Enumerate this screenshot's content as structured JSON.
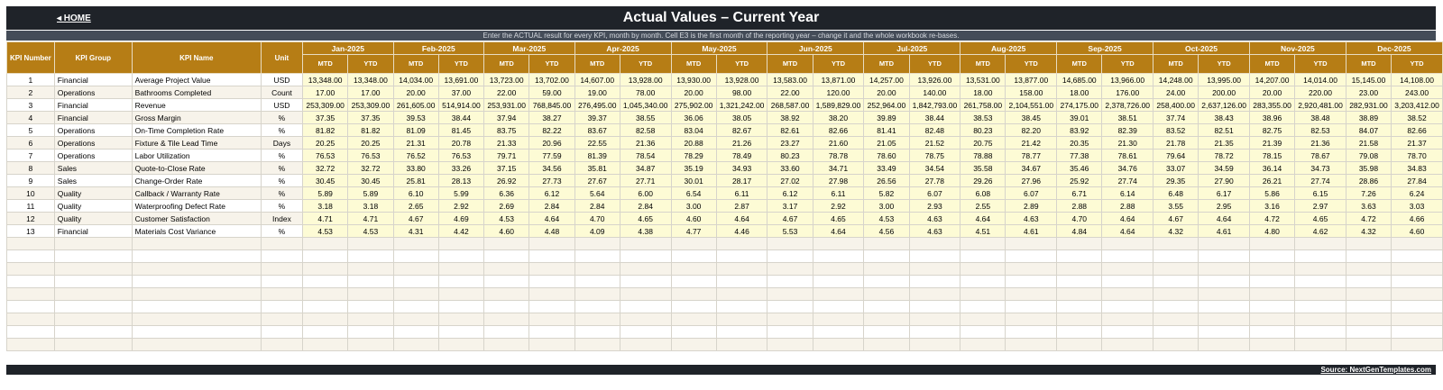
{
  "header": {
    "home_label": "◂ HOME",
    "title": "Actual Values  –  Current Year",
    "instructions": "Enter the ACTUAL result for every KPI, month by month. Cell E3 is the first month of the reporting year – change it and the whole workbook re-bases."
  },
  "table": {
    "columns": {
      "num": "KPI Number",
      "group": "KPI Group",
      "name": "KPI Name",
      "unit": "Unit",
      "mtd": "MTD",
      "ytd": "YTD"
    },
    "months": [
      "Jan-2025",
      "Feb-2025",
      "Mar-2025",
      "Apr-2025",
      "May-2025",
      "Jun-2025",
      "Jul-2025",
      "Aug-2025",
      "Sep-2025",
      "Oct-2025",
      "Nov-2025",
      "Dec-2025"
    ],
    "rows": [
      {
        "num": "1",
        "group": "Financial",
        "name": "Average Project Value",
        "unit": "USD",
        "values": [
          "13,348.00",
          "13,348.00",
          "14,034.00",
          "13,691.00",
          "13,723.00",
          "13,702.00",
          "14,607.00",
          "13,928.00",
          "13,930.00",
          "13,928.00",
          "13,583.00",
          "13,871.00",
          "14,257.00",
          "13,926.00",
          "13,531.00",
          "13,877.00",
          "14,685.00",
          "13,966.00",
          "14,248.00",
          "13,995.00",
          "14,207.00",
          "14,014.00",
          "15,145.00",
          "14,108.00"
        ]
      },
      {
        "num": "2",
        "group": "Operations",
        "name": "Bathrooms Completed",
        "unit": "Count",
        "values": [
          "17.00",
          "17.00",
          "20.00",
          "37.00",
          "22.00",
          "59.00",
          "19.00",
          "78.00",
          "20.00",
          "98.00",
          "22.00",
          "120.00",
          "20.00",
          "140.00",
          "18.00",
          "158.00",
          "18.00",
          "176.00",
          "24.00",
          "200.00",
          "20.00",
          "220.00",
          "23.00",
          "243.00"
        ]
      },
      {
        "num": "3",
        "group": "Financial",
        "name": "Revenue",
        "unit": "USD",
        "values": [
          "253,309.00",
          "253,309.00",
          "261,605.00",
          "514,914.00",
          "253,931.00",
          "768,845.00",
          "276,495.00",
          "1,045,340.00",
          "275,902.00",
          "1,321,242.00",
          "268,587.00",
          "1,589,829.00",
          "252,964.00",
          "1,842,793.00",
          "261,758.00",
          "2,104,551.00",
          "274,175.00",
          "2,378,726.00",
          "258,400.00",
          "2,637,126.00",
          "283,355.00",
          "2,920,481.00",
          "282,931.00",
          "3,203,412.00"
        ]
      },
      {
        "num": "4",
        "group": "Financial",
        "name": "Gross Margin",
        "unit": "%",
        "values": [
          "37.35",
          "37.35",
          "39.53",
          "38.44",
          "37.94",
          "38.27",
          "39.37",
          "38.55",
          "36.06",
          "38.05",
          "38.92",
          "38.20",
          "39.89",
          "38.44",
          "38.53",
          "38.45",
          "39.01",
          "38.51",
          "37.74",
          "38.43",
          "38.96",
          "38.48",
          "38.89",
          "38.52"
        ]
      },
      {
        "num": "5",
        "group": "Operations",
        "name": "On-Time Completion Rate",
        "unit": "%",
        "values": [
          "81.82",
          "81.82",
          "81.09",
          "81.45",
          "83.75",
          "82.22",
          "83.67",
          "82.58",
          "83.04",
          "82.67",
          "82.61",
          "82.66",
          "81.41",
          "82.48",
          "80.23",
          "82.20",
          "83.92",
          "82.39",
          "83.52",
          "82.51",
          "82.75",
          "82.53",
          "84.07",
          "82.66"
        ]
      },
      {
        "num": "6",
        "group": "Operations",
        "name": "Fixture & Tile Lead Time",
        "unit": "Days",
        "values": [
          "20.25",
          "20.25",
          "21.31",
          "20.78",
          "21.33",
          "20.96",
          "22.55",
          "21.36",
          "20.88",
          "21.26",
          "23.27",
          "21.60",
          "21.05",
          "21.52",
          "20.75",
          "21.42",
          "20.35",
          "21.30",
          "21.78",
          "21.35",
          "21.39",
          "21.36",
          "21.58",
          "21.37"
        ]
      },
      {
        "num": "7",
        "group": "Operations",
        "name": "Labor Utilization",
        "unit": "%",
        "values": [
          "76.53",
          "76.53",
          "76.52",
          "76.53",
          "79.71",
          "77.59",
          "81.39",
          "78.54",
          "78.29",
          "78.49",
          "80.23",
          "78.78",
          "78.60",
          "78.75",
          "78.88",
          "78.77",
          "77.38",
          "78.61",
          "79.64",
          "78.72",
          "78.15",
          "78.67",
          "79.08",
          "78.70"
        ]
      },
      {
        "num": "8",
        "group": "Sales",
        "name": "Quote-to-Close Rate",
        "unit": "%",
        "values": [
          "32.72",
          "32.72",
          "33.80",
          "33.26",
          "37.15",
          "34.56",
          "35.81",
          "34.87",
          "35.19",
          "34.93",
          "33.60",
          "34.71",
          "33.49",
          "34.54",
          "35.58",
          "34.67",
          "35.46",
          "34.76",
          "33.07",
          "34.59",
          "36.14",
          "34.73",
          "35.98",
          "34.83"
        ]
      },
      {
        "num": "9",
        "group": "Sales",
        "name": "Change-Order Rate",
        "unit": "%",
        "values": [
          "30.45",
          "30.45",
          "25.81",
          "28.13",
          "26.92",
          "27.73",
          "27.67",
          "27.71",
          "30.01",
          "28.17",
          "27.02",
          "27.98",
          "26.56",
          "27.78",
          "29.26",
          "27.96",
          "25.92",
          "27.74",
          "29.35",
          "27.90",
          "26.21",
          "27.74",
          "28.86",
          "27.84"
        ]
      },
      {
        "num": "10",
        "group": "Quality",
        "name": "Callback / Warranty Rate",
        "unit": "%",
        "values": [
          "5.89",
          "5.89",
          "6.10",
          "5.99",
          "6.36",
          "6.12",
          "5.64",
          "6.00",
          "6.54",
          "6.11",
          "6.12",
          "6.11",
          "5.82",
          "6.07",
          "6.08",
          "6.07",
          "6.71",
          "6.14",
          "6.48",
          "6.17",
          "5.86",
          "6.15",
          "7.26",
          "6.24"
        ]
      },
      {
        "num": "11",
        "group": "Quality",
        "name": "Waterproofing Defect Rate",
        "unit": "%",
        "values": [
          "3.18",
          "3.18",
          "2.65",
          "2.92",
          "2.69",
          "2.84",
          "2.84",
          "2.84",
          "3.00",
          "2.87",
          "3.17",
          "2.92",
          "3.00",
          "2.93",
          "2.55",
          "2.89",
          "2.88",
          "2.88",
          "3.55",
          "2.95",
          "3.16",
          "2.97",
          "3.63",
          "3.03"
        ]
      },
      {
        "num": "12",
        "group": "Quality",
        "name": "Customer Satisfaction",
        "unit": "Index",
        "values": [
          "4.71",
          "4.71",
          "4.67",
          "4.69",
          "4.53",
          "4.64",
          "4.70",
          "4.65",
          "4.60",
          "4.64",
          "4.67",
          "4.65",
          "4.53",
          "4.63",
          "4.64",
          "4.63",
          "4.70",
          "4.64",
          "4.67",
          "4.64",
          "4.72",
          "4.65",
          "4.72",
          "4.66"
        ]
      },
      {
        "num": "13",
        "group": "Financial",
        "name": "Materials Cost Variance",
        "unit": "%",
        "values": [
          "4.53",
          "4.53",
          "4.31",
          "4.42",
          "4.60",
          "4.48",
          "4.09",
          "4.38",
          "4.77",
          "4.46",
          "5.53",
          "4.64",
          "4.56",
          "4.63",
          "4.51",
          "4.61",
          "4.84",
          "4.64",
          "4.32",
          "4.61",
          "4.80",
          "4.62",
          "4.32",
          "4.60"
        ]
      }
    ],
    "empty_rows": 9
  },
  "footer": {
    "source": "Source: NextGenTemplates.com"
  }
}
